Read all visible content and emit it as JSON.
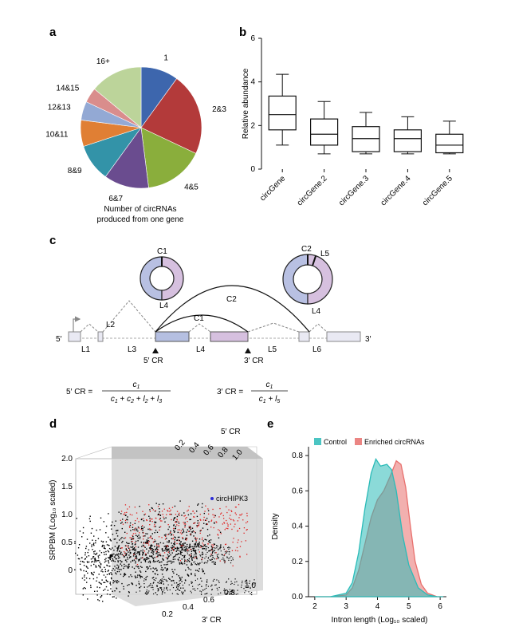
{
  "panels": {
    "a": "a",
    "b": "b",
    "c": "c",
    "d": "d",
    "e": "e"
  },
  "chart_data": [
    {
      "type": "pie",
      "panel": "a",
      "caption": [
        "Number of circRNAs",
        "produced from one gene"
      ],
      "slices": [
        {
          "label": "1",
          "value": 10,
          "color": "#3d66ad"
        },
        {
          "label": "2&3",
          "value": 22,
          "color": "#b33a3a"
        },
        {
          "label": "4&5",
          "value": 16,
          "color": "#8aae3c"
        },
        {
          "label": "6&7",
          "value": 12,
          "color": "#6a4c8f"
        },
        {
          "label": "8&9",
          "value": 10,
          "color": "#3393a8"
        },
        {
          "label": "10&11",
          "value": 7,
          "color": "#e07f34"
        },
        {
          "label": "12&13",
          "value": 5,
          "color": "#93a9d4"
        },
        {
          "label": "14&15",
          "value": 4,
          "color": "#d98d8c"
        },
        {
          "label": "16+",
          "value": 14,
          "color": "#bcd49a"
        }
      ]
    },
    {
      "type": "box",
      "panel": "b",
      "ylabel": "Relative abundance",
      "ylim": [
        0,
        6
      ],
      "yticks": [
        0,
        2,
        4,
        6
      ],
      "categories": [
        "circGene",
        "circGene.2",
        "circGene.3",
        "circGene.4",
        "circGene.5"
      ],
      "boxes": [
        {
          "min": 1.1,
          "q1": 1.8,
          "median": 2.5,
          "q3": 3.35,
          "max": 4.35
        },
        {
          "min": 0.7,
          "q1": 1.1,
          "median": 1.6,
          "q3": 2.3,
          "max": 3.1
        },
        {
          "min": 0.7,
          "q1": 0.8,
          "median": 1.4,
          "q3": 1.95,
          "max": 2.6
        },
        {
          "min": 0.7,
          "q1": 0.8,
          "median": 1.4,
          "q3": 1.8,
          "max": 2.4
        },
        {
          "min": 0.7,
          "q1": 0.75,
          "median": 1.1,
          "q3": 1.6,
          "max": 2.2
        }
      ]
    },
    {
      "type": "scatter",
      "panel": "d",
      "zlabel": "SRPBM (Log₁₀ scaled)",
      "zticks": [
        "0",
        "0.5",
        "1.0",
        "1.5",
        "2.0"
      ],
      "xlabel": "3′ CR",
      "xticks": [
        "0.2",
        "0.4",
        "0.6",
        "0.8",
        "1.0"
      ],
      "ylabel": "5′ CR",
      "yticks": [
        "0.2",
        "0.4",
        "0.6",
        "0.8",
        "1.0"
      ],
      "annotation": "circHIPK3"
    },
    {
      "type": "area",
      "panel": "e",
      "xlabel": "Intron length (Log₁₀ scaled)",
      "ylabel": "Density",
      "xlim": [
        1.8,
        6.2
      ],
      "ylim": [
        0,
        0.85
      ],
      "xticks": [
        2,
        3,
        4,
        5,
        6
      ],
      "yticks": [
        0.0,
        0.2,
        0.4,
        0.6,
        0.8
      ],
      "legend": [
        "Control",
        "Enriched circRNAs"
      ],
      "series": [
        {
          "name": "Control",
          "color": "#2bbbb8",
          "x": [
            2.0,
            2.5,
            3.0,
            3.2,
            3.4,
            3.6,
            3.8,
            3.95,
            4.1,
            4.3,
            4.45,
            4.6,
            4.8,
            5.0,
            5.3,
            5.6,
            5.9,
            6.1
          ],
          "y": [
            0.0,
            0.0,
            0.02,
            0.08,
            0.25,
            0.5,
            0.7,
            0.78,
            0.74,
            0.75,
            0.72,
            0.6,
            0.35,
            0.18,
            0.05,
            0.01,
            0.0,
            0.0
          ]
        },
        {
          "name": "Enriched circRNAs",
          "color": "#e8706d",
          "x": [
            2.0,
            2.5,
            3.0,
            3.2,
            3.4,
            3.6,
            3.8,
            4.0,
            4.2,
            4.4,
            4.6,
            4.75,
            4.9,
            5.05,
            5.2,
            5.4,
            5.6,
            5.9,
            6.1
          ],
          "y": [
            0.0,
            0.0,
            0.01,
            0.05,
            0.15,
            0.3,
            0.45,
            0.55,
            0.6,
            0.68,
            0.77,
            0.75,
            0.62,
            0.4,
            0.2,
            0.07,
            0.02,
            0.0,
            0.0
          ]
        }
      ]
    }
  ],
  "diagram_c": {
    "five_prime": "5′",
    "three_prime": "3′",
    "segments": [
      "L1",
      "L2",
      "L3",
      "L4",
      "L5",
      "L6"
    ],
    "c1": "C1",
    "c2": "C2",
    "l4": "L4",
    "l5": "L5",
    "cr5": "5′ CR",
    "cr3": "3′ CR",
    "donut_colors": {
      "left": "#b8c0e2",
      "right": "#d6c0df"
    }
  }
}
